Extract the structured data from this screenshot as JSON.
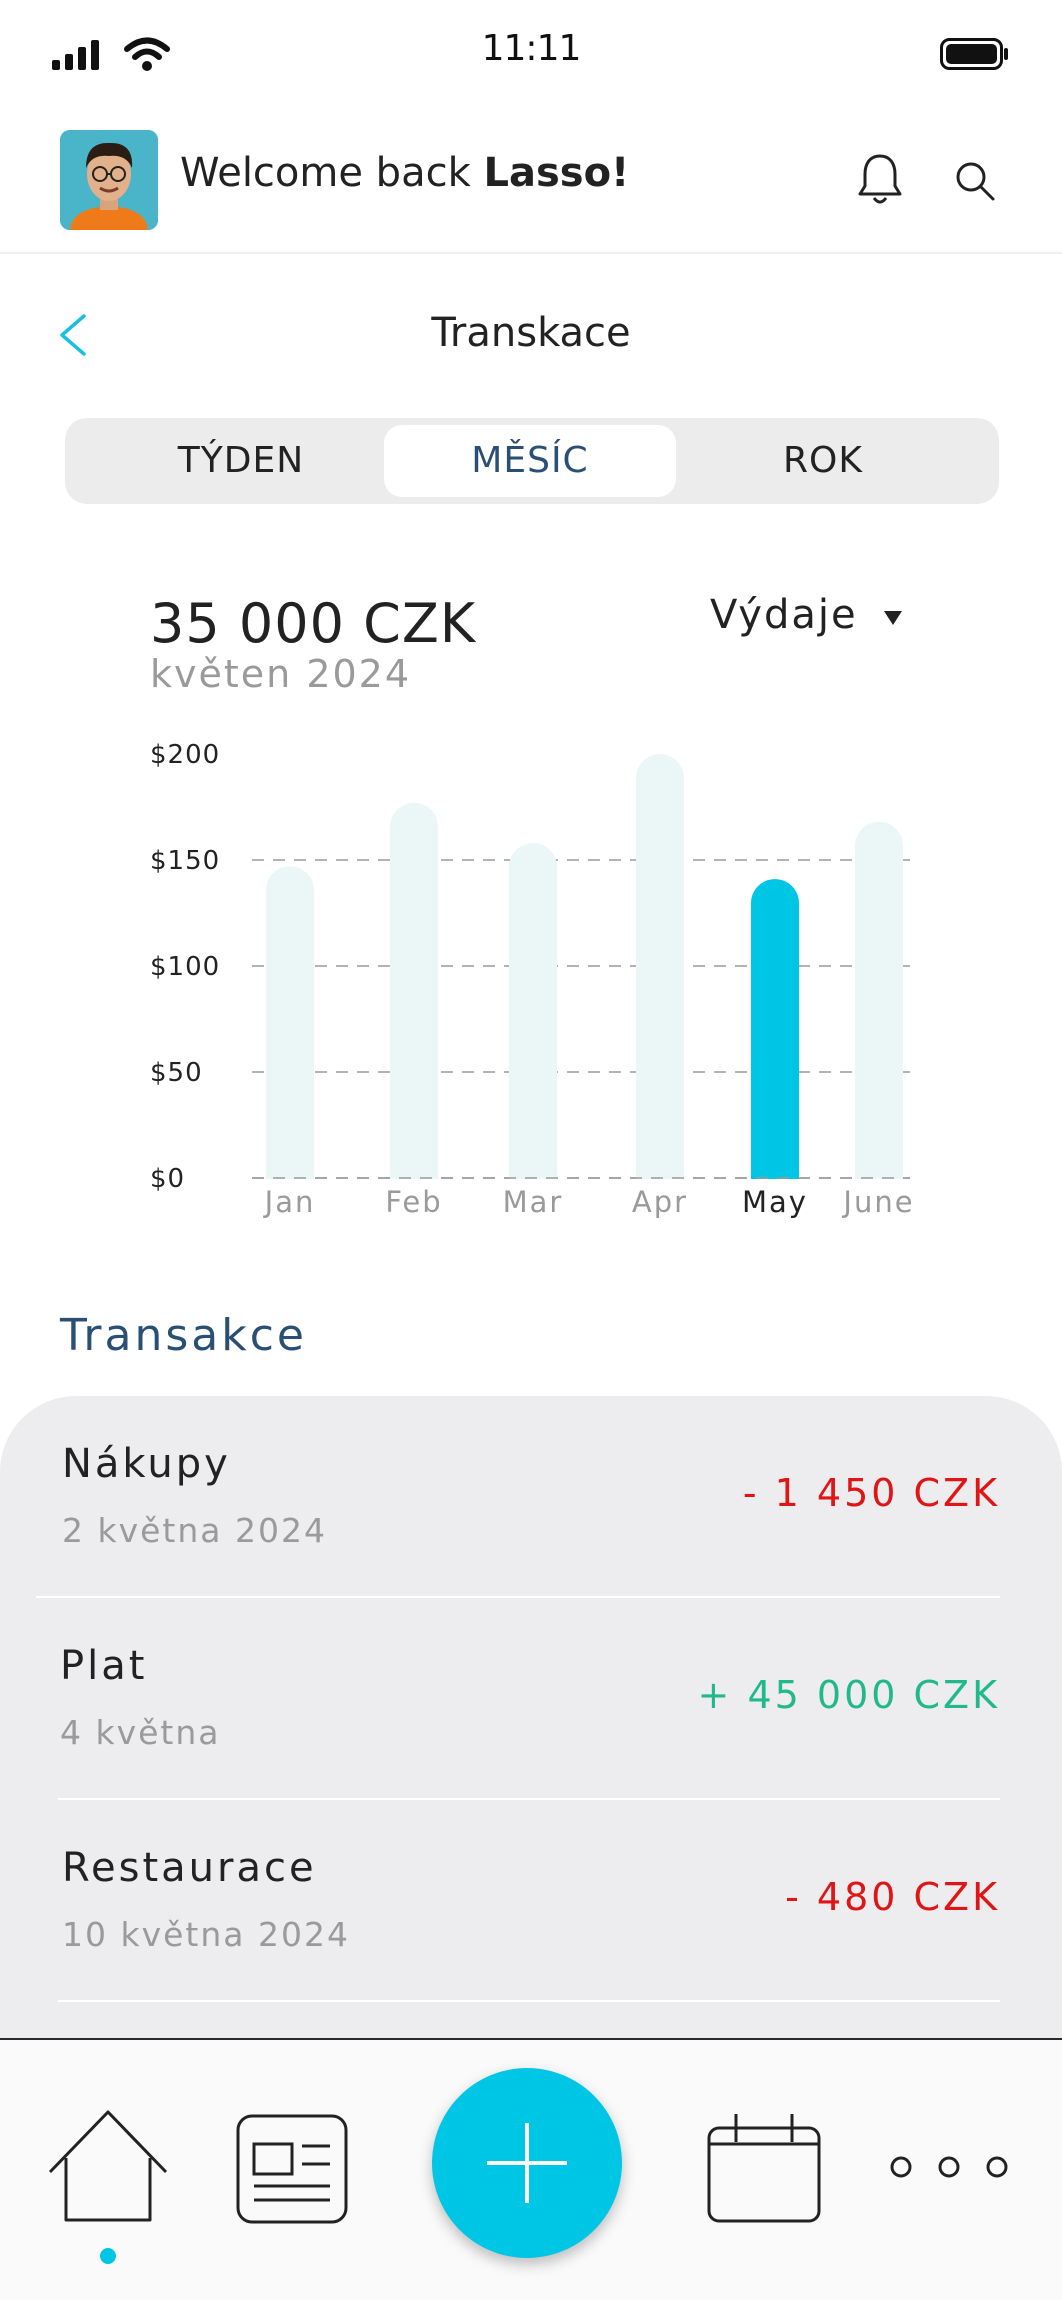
{
  "status_bar": {
    "time": "11:11"
  },
  "header": {
    "welcome_prefix": "Welcome back ",
    "user_name": "Lasso!"
  },
  "page": {
    "title": "Transkace"
  },
  "segments": {
    "week": "TÝDEN",
    "month": "MĚSÍC",
    "year": "ROK",
    "selected": "MĚSÍC"
  },
  "summary": {
    "amount": "35 000 CZK",
    "period": "květen 2024",
    "filter_label": "Výdaje"
  },
  "chart_data": {
    "type": "bar",
    "categories": [
      "Jan",
      "Feb",
      "Mar",
      "Apr",
      "May",
      "June"
    ],
    "values": [
      147,
      177,
      158,
      200,
      141,
      168
    ],
    "highlighted": "May",
    "yticks": [
      "$0",
      "$50",
      "$100",
      "$150",
      "$200"
    ],
    "ylim": [
      0,
      200
    ],
    "grid": true,
    "colors": {
      "bar": "#eaf7f6",
      "highlight": "#00c6e6"
    }
  },
  "transactions": {
    "title": "Transakce",
    "items": [
      {
        "name": "Nákupy",
        "date": "2 května 2024",
        "amount": "- 1 450 CZK",
        "color": "#e01515"
      },
      {
        "name": "Plat",
        "date": "4 května",
        "amount": "+ 45 000 CZK",
        "color": "#22b98a"
      },
      {
        "name": "Restaurace",
        "date": "10 května 2024",
        "amount": "- 480 CZK",
        "color": "#e01515"
      }
    ]
  },
  "nav": {
    "items": [
      "home-icon",
      "news-icon",
      "add-icon",
      "calendar-icon",
      "more-icon"
    ],
    "accent": "#00c6e6"
  }
}
